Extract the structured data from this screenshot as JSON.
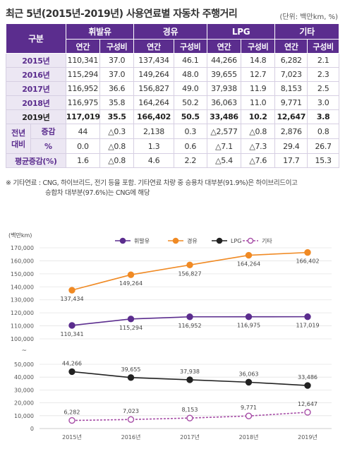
{
  "title": "최근 5년(2015년-2019년) 사용연료별 자동차 주행거리",
  "unit_note": "(단위: 백만km, %)",
  "table": {
    "corner": "구분",
    "groups": [
      "휘발유",
      "경유",
      "LPG",
      "기타"
    ],
    "subheaders": [
      "연간",
      "구성비",
      "연간",
      "구성비",
      "연간",
      "구성비",
      "연간",
      "구성비"
    ],
    "rows": [
      {
        "label": "2015년",
        "cells": [
          "110,341",
          "37.0",
          "137,434",
          "46.1",
          "44,266",
          "14.8",
          "6,282",
          "2.1"
        ]
      },
      {
        "label": "2016년",
        "cells": [
          "115,294",
          "37.0",
          "149,264",
          "48.0",
          "39,655",
          "12.7",
          "7,023",
          "2.3"
        ]
      },
      {
        "label": "2017년",
        "cells": [
          "116,952",
          "36.6",
          "156,827",
          "49.0",
          "37,938",
          "11.9",
          "8,153",
          "2.5"
        ]
      },
      {
        "label": "2018년",
        "cells": [
          "116,975",
          "35.8",
          "164,264",
          "50.2",
          "36,063",
          "11.0",
          "9,771",
          "3.0"
        ]
      },
      {
        "label": "2019년",
        "cells": [
          "117,019",
          "35.5",
          "166,402",
          "50.5",
          "33,486",
          "10.2",
          "12,647",
          "3.8"
        ]
      }
    ],
    "yoy_label": "전년\n대비",
    "yoy_rows": [
      {
        "label": "증감",
        "cells": [
          "44",
          "△0.3",
          "2,138",
          "0.3",
          "△2,577",
          "△0.8",
          "2,876",
          "0.8"
        ]
      },
      {
        "label": "%",
        "cells": [
          "0.0",
          "△0.8",
          "1.3",
          "0.6",
          "△7.1",
          "△7.3",
          "29.4",
          "26.7"
        ]
      }
    ],
    "avg_row": {
      "label": "평균증감(%)",
      "cells": [
        "1.6",
        "△0.8",
        "4.6",
        "2.2",
        "△5.4",
        "△7.6",
        "17.7",
        "15.3"
      ]
    }
  },
  "notes": [
    "※ 기타연료 : CNG, 하이브리드, 전기 등을 포함. 기타연료 차량 중 승용차 대부분(91.9%)은 하이브리드이고",
    "승합차 대부분(97.6%)는 CNG에 해당"
  ],
  "chart_data": {
    "type": "line",
    "categories": [
      "2015년",
      "2016년",
      "2017년",
      "2018년",
      "2019년"
    ],
    "ylabel": "(백만km)",
    "legend_position": "top",
    "axis_break": "~",
    "y_ticks_upper": [
      "170,000",
      "160,000",
      "150,000",
      "140,000",
      "130,000",
      "120,000",
      "110,000",
      "100,000"
    ],
    "y_ticks_lower": [
      "50,000",
      "40,000",
      "30,000",
      "20,000",
      "10,000",
      "0"
    ],
    "series": [
      {
        "name": "휘발유",
        "color": "#5b2d8e",
        "values": [
          110341,
          115294,
          116952,
          116975,
          117019
        ],
        "labels": [
          "110,341",
          "115,294",
          "116,952",
          "116,975",
          "117,019"
        ],
        "label_pos": "below"
      },
      {
        "name": "경유",
        "color": "#f08a24",
        "values": [
          137434,
          149264,
          156827,
          164264,
          166402
        ],
        "labels": [
          "137,434",
          "149,264",
          "156,827",
          "164,264",
          "166,402"
        ],
        "label_pos": "below"
      },
      {
        "name": "LPG",
        "color": "#222222",
        "values": [
          44266,
          39655,
          37938,
          36063,
          33486
        ],
        "labels": [
          "44,266",
          "39,655",
          "37,938",
          "36,063",
          "33,486"
        ],
        "label_pos": "above"
      },
      {
        "name": "기타",
        "color": "#a64ca6",
        "values": [
          6282,
          7023,
          8153,
          9771,
          12647
        ],
        "labels": [
          "6,282",
          "7,023",
          "8,153",
          "9,771",
          "12,647"
        ],
        "label_pos": "above",
        "dashed": true,
        "hollow": true
      }
    ]
  }
}
